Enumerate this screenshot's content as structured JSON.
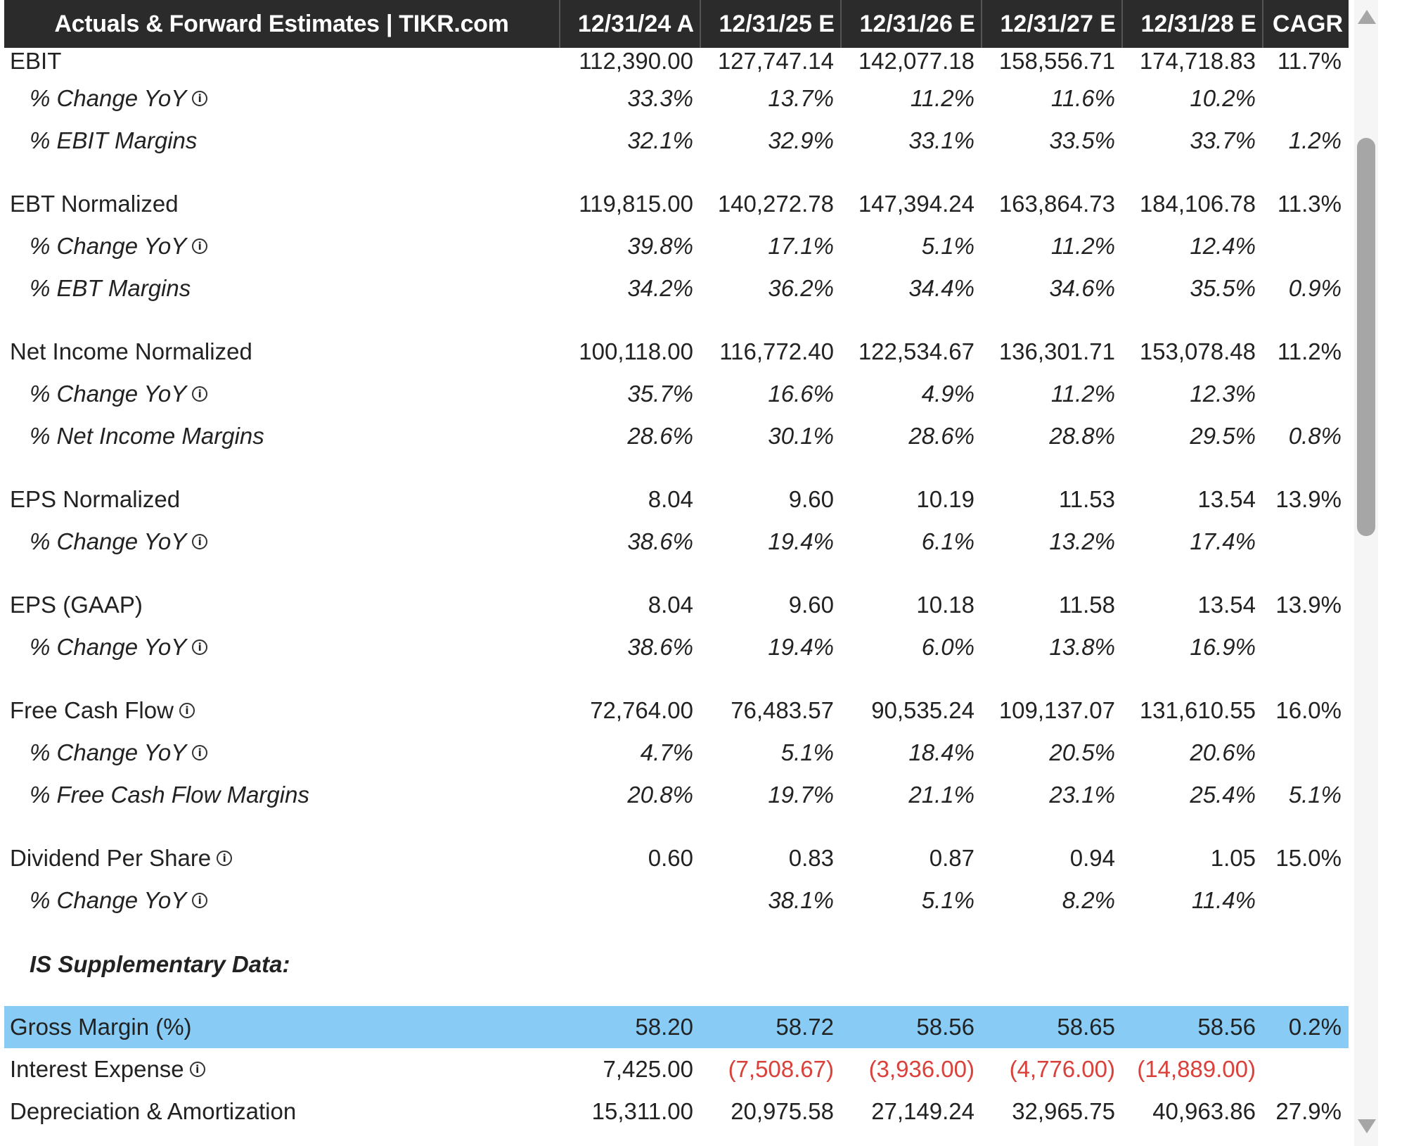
{
  "header": {
    "title": "Actuals & Forward Estimates | TIKR.com",
    "columns": [
      "12/31/24 A",
      "12/31/25 E",
      "12/31/26 E",
      "12/31/27 E",
      "12/31/28 E",
      "CAGR"
    ]
  },
  "rows": {
    "ebit": {
      "label": "EBIT",
      "values": [
        "112,390.00",
        "127,747.14",
        "142,077.18",
        "158,556.71",
        "174,718.83",
        "11.7%"
      ]
    },
    "ebit_yoy": {
      "label": "% Change YoY",
      "values": [
        "33.3%",
        "13.7%",
        "11.2%",
        "11.6%",
        "10.2%",
        ""
      ]
    },
    "ebit_margin": {
      "label": "% EBIT Margins",
      "values": [
        "32.1%",
        "32.9%",
        "33.1%",
        "33.5%",
        "33.7%",
        "1.2%"
      ]
    },
    "ebt": {
      "label": "EBT Normalized",
      "values": [
        "119,815.00",
        "140,272.78",
        "147,394.24",
        "163,864.73",
        "184,106.78",
        "11.3%"
      ]
    },
    "ebt_yoy": {
      "label": "% Change YoY",
      "values": [
        "39.8%",
        "17.1%",
        "5.1%",
        "11.2%",
        "12.4%",
        ""
      ]
    },
    "ebt_margin": {
      "label": "% EBT Margins",
      "values": [
        "34.2%",
        "36.2%",
        "34.4%",
        "34.6%",
        "35.5%",
        "0.9%"
      ]
    },
    "ni": {
      "label": "Net Income Normalized",
      "values": [
        "100,118.00",
        "116,772.40",
        "122,534.67",
        "136,301.71",
        "153,078.48",
        "11.2%"
      ]
    },
    "ni_yoy": {
      "label": "% Change YoY",
      "values": [
        "35.7%",
        "16.6%",
        "4.9%",
        "11.2%",
        "12.3%",
        ""
      ]
    },
    "ni_margin": {
      "label": "% Net Income Margins",
      "values": [
        "28.6%",
        "30.1%",
        "28.6%",
        "28.8%",
        "29.5%",
        "0.8%"
      ]
    },
    "eps_norm": {
      "label": "EPS Normalized",
      "values": [
        "8.04",
        "9.60",
        "10.19",
        "11.53",
        "13.54",
        "13.9%"
      ]
    },
    "eps_norm_yoy": {
      "label": "% Change YoY",
      "values": [
        "38.6%",
        "19.4%",
        "6.1%",
        "13.2%",
        "17.4%",
        ""
      ]
    },
    "eps_gaap": {
      "label": "EPS (GAAP)",
      "values": [
        "8.04",
        "9.60",
        "10.18",
        "11.58",
        "13.54",
        "13.9%"
      ]
    },
    "eps_gaap_yoy": {
      "label": "% Change YoY",
      "values": [
        "38.6%",
        "19.4%",
        "6.0%",
        "13.8%",
        "16.9%",
        ""
      ]
    },
    "fcf": {
      "label": "Free Cash Flow",
      "values": [
        "72,764.00",
        "76,483.57",
        "90,535.24",
        "109,137.07",
        "131,610.55",
        "16.0%"
      ]
    },
    "fcf_yoy": {
      "label": "% Change YoY",
      "values": [
        "4.7%",
        "5.1%",
        "18.4%",
        "20.5%",
        "20.6%",
        ""
      ]
    },
    "fcf_margin": {
      "label": "% Free Cash Flow Margins",
      "values": [
        "20.8%",
        "19.7%",
        "21.1%",
        "23.1%",
        "25.4%",
        "5.1%"
      ]
    },
    "dps": {
      "label": "Dividend Per Share",
      "values": [
        "0.60",
        "0.83",
        "0.87",
        "0.94",
        "1.05",
        "15.0%"
      ]
    },
    "dps_yoy": {
      "label": "% Change YoY",
      "values": [
        "",
        "38.1%",
        "5.1%",
        "8.2%",
        "11.4%",
        ""
      ]
    },
    "supp_title": {
      "label": "IS Supplementary Data:"
    },
    "gross_margin": {
      "label": "Gross Margin (%)",
      "values": [
        "58.20",
        "58.72",
        "58.56",
        "58.65",
        "58.56",
        "0.2%"
      ]
    },
    "interest": {
      "label": "Interest Expense",
      "values": [
        "7,425.00",
        "(7,508.67)",
        "(3,936.00)",
        "(4,776.00)",
        "(14,889.00)",
        ""
      ]
    },
    "da": {
      "label": "Depreciation & Amortization",
      "values": [
        "15,311.00",
        "20,975.58",
        "27,149.24",
        "32,965.75",
        "40,963.86",
        "27.9%"
      ]
    }
  },
  "icons": {
    "info": "info-icon",
    "scroll_up": "arrow-up-icon",
    "scroll_down": "arrow-down-icon"
  },
  "colors": {
    "header_bg": "#2b2b2b",
    "highlight_bg": "#88ccf5",
    "negative": "#d9413b"
  }
}
